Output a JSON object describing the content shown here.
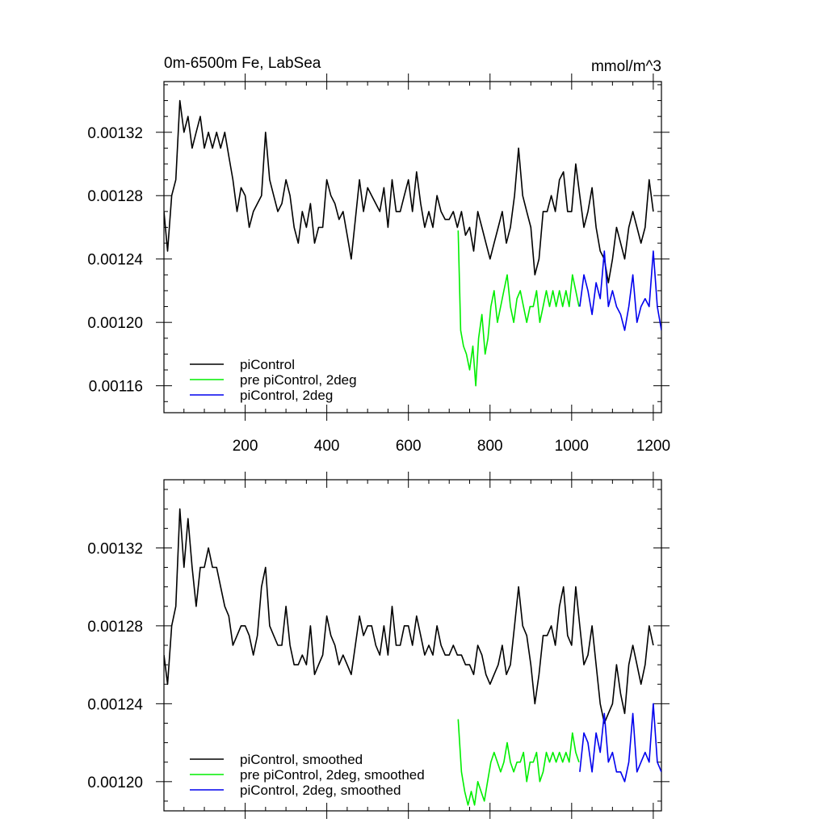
{
  "figure": {
    "title_left": "0m-6500m Fe, LabSea",
    "title_right": "mmol/m^3"
  },
  "chart_data": [
    {
      "type": "line",
      "title": "0m-6500m Fe, LabSea",
      "units": "mmol/m^3",
      "xlim": [
        1,
        1220
      ],
      "ylim": [
        0.001143,
        0.001352
      ],
      "xticks": [
        200,
        400,
        600,
        800,
        1000,
        1200
      ],
      "xtick_labels": [
        "200",
        "400",
        "600",
        "800",
        "1000",
        "1200"
      ],
      "show_xtick_labels": true,
      "yticks": [
        0.00116,
        0.0012,
        0.00124,
        0.00128,
        0.00132
      ],
      "ytick_labels": [
        "0.00116",
        "0.00120",
        "0.00124",
        "0.00128",
        "0.00132"
      ],
      "legend_position": "bottom-left",
      "series": [
        {
          "name": "piControl",
          "color": "#000000",
          "x": [
            1,
            10,
            20,
            30,
            40,
            50,
            60,
            70,
            80,
            90,
            100,
            110,
            120,
            130,
            140,
            150,
            160,
            170,
            180,
            190,
            200,
            210,
            220,
            230,
            240,
            250,
            260,
            270,
            280,
            290,
            300,
            310,
            320,
            330,
            340,
            350,
            360,
            370,
            380,
            390,
            400,
            410,
            420,
            430,
            440,
            450,
            460,
            470,
            480,
            490,
            500,
            510,
            520,
            530,
            540,
            550,
            560,
            570,
            580,
            590,
            600,
            610,
            620,
            630,
            640,
            650,
            660,
            670,
            680,
            690,
            700,
            710,
            720,
            730,
            740,
            750,
            760,
            770,
            780,
            790,
            800,
            810,
            820,
            830,
            840,
            850,
            860,
            870,
            880,
            890,
            900,
            910,
            920,
            930,
            940,
            950,
            960,
            970,
            980,
            990,
            1000,
            1010,
            1020,
            1030,
            1040,
            1050,
            1060,
            1070,
            1080,
            1090,
            1100,
            1110,
            1120,
            1130,
            1140,
            1150,
            1160,
            1170,
            1180,
            1190,
            1200
          ],
          "y": [
            0.00127,
            0.001245,
            0.00128,
            0.00129,
            0.00134,
            0.00132,
            0.00133,
            0.00131,
            0.00132,
            0.00133,
            0.00131,
            0.00132,
            0.00131,
            0.00132,
            0.00131,
            0.00132,
            0.001305,
            0.00129,
            0.00127,
            0.001285,
            0.00128,
            0.00126,
            0.00127,
            0.001275,
            0.00128,
            0.00132,
            0.00129,
            0.00128,
            0.00127,
            0.001275,
            0.00129,
            0.00128,
            0.00126,
            0.00125,
            0.00127,
            0.00126,
            0.001275,
            0.00125,
            0.00126,
            0.00126,
            0.00129,
            0.00128,
            0.001275,
            0.001265,
            0.00127,
            0.001255,
            0.00124,
            0.001265,
            0.00129,
            0.00127,
            0.001285,
            0.00128,
            0.001275,
            0.00127,
            0.001285,
            0.00126,
            0.00129,
            0.00127,
            0.00127,
            0.00128,
            0.00129,
            0.00127,
            0.001295,
            0.001275,
            0.00126,
            0.00127,
            0.00126,
            0.00128,
            0.00127,
            0.001265,
            0.001265,
            0.00127,
            0.00126,
            0.00127,
            0.001255,
            0.00126,
            0.001245,
            0.00127,
            0.00126,
            0.00125,
            0.00124,
            0.00125,
            0.00126,
            0.00127,
            0.00125,
            0.00126,
            0.00128,
            0.00131,
            0.00128,
            0.00127,
            0.00126,
            0.00123,
            0.00124,
            0.00127,
            0.00127,
            0.00128,
            0.00127,
            0.00129,
            0.001295,
            0.00127,
            0.00127,
            0.0013,
            0.00128,
            0.00126,
            0.00127,
            0.001285,
            0.00126,
            0.001245,
            0.00124,
            0.001225,
            0.00124,
            0.00126,
            0.00125,
            0.00124,
            0.00126,
            0.00127,
            0.00126,
            0.00125,
            0.00126,
            0.00129,
            0.00127
          ]
        },
        {
          "name": "pre piControl, 2deg",
          "color": "#00ee00",
          "x": [
            722,
            728,
            735,
            742,
            750,
            758,
            765,
            772,
            780,
            788,
            795,
            802,
            810,
            818,
            826,
            834,
            842,
            850,
            858,
            866,
            874,
            882,
            890,
            898,
            906,
            914,
            922,
            930,
            938,
            946,
            954,
            962,
            970,
            978,
            986,
            994,
            1002,
            1010,
            1018
          ],
          "y": [
            0.001258,
            0.001195,
            0.001185,
            0.00118,
            0.00117,
            0.001185,
            0.00116,
            0.00119,
            0.001205,
            0.00118,
            0.00119,
            0.00121,
            0.00122,
            0.0012,
            0.00121,
            0.00122,
            0.00123,
            0.00121,
            0.0012,
            0.001215,
            0.00122,
            0.00121,
            0.0012,
            0.00121,
            0.00121,
            0.00122,
            0.0012,
            0.00121,
            0.00122,
            0.00121,
            0.00122,
            0.00121,
            0.00122,
            0.00121,
            0.00122,
            0.00121,
            0.00123,
            0.00122,
            0.00121
          ]
        },
        {
          "name": "piControl, 2deg",
          "color": "#0000ee",
          "x": [
            1020,
            1030,
            1040,
            1050,
            1060,
            1070,
            1080,
            1090,
            1100,
            1110,
            1120,
            1130,
            1140,
            1150,
            1160,
            1170,
            1180,
            1190,
            1200,
            1210,
            1220
          ],
          "y": [
            0.00121,
            0.00123,
            0.00122,
            0.001205,
            0.001225,
            0.001215,
            0.001245,
            0.00121,
            0.00122,
            0.00121,
            0.001205,
            0.001195,
            0.00121,
            0.00123,
            0.0012,
            0.00121,
            0.001215,
            0.00121,
            0.001245,
            0.00121,
            0.001195
          ]
        }
      ]
    },
    {
      "type": "line",
      "xlim": [
        1,
        1220
      ],
      "ylim": [
        0.001185,
        0.001355
      ],
      "xticks": [
        200,
        400,
        600,
        800,
        1000,
        1200
      ],
      "xtick_labels": [
        "200",
        "400",
        "600",
        "800",
        "1000",
        "1200"
      ],
      "show_xtick_labels": false,
      "yticks": [
        0.0012,
        0.00124,
        0.00128,
        0.00132
      ],
      "ytick_labels": [
        "0.00120",
        "0.00124",
        "0.00128",
        "0.00132"
      ],
      "legend_position": "bottom-left",
      "series": [
        {
          "name": "piControl, smoothed",
          "color": "#000000",
          "x": [
            1,
            10,
            20,
            30,
            40,
            50,
            60,
            70,
            80,
            90,
            100,
            110,
            120,
            130,
            140,
            150,
            160,
            170,
            180,
            190,
            200,
            210,
            220,
            230,
            240,
            250,
            260,
            270,
            280,
            290,
            300,
            310,
            320,
            330,
            340,
            350,
            360,
            370,
            380,
            390,
            400,
            410,
            420,
            430,
            440,
            450,
            460,
            470,
            480,
            490,
            500,
            510,
            520,
            530,
            540,
            550,
            560,
            570,
            580,
            590,
            600,
            610,
            620,
            630,
            640,
            650,
            660,
            670,
            680,
            690,
            700,
            710,
            720,
            730,
            740,
            750,
            760,
            770,
            780,
            790,
            800,
            810,
            820,
            830,
            840,
            850,
            860,
            870,
            880,
            890,
            900,
            910,
            920,
            930,
            940,
            950,
            960,
            970,
            980,
            990,
            1000,
            1010,
            1020,
            1030,
            1040,
            1050,
            1060,
            1070,
            1080,
            1090,
            1100,
            1110,
            1120,
            1130,
            1140,
            1150,
            1160,
            1170,
            1180,
            1190,
            1200
          ],
          "y": [
            0.001265,
            0.00125,
            0.00128,
            0.00129,
            0.00134,
            0.00131,
            0.001335,
            0.00131,
            0.00129,
            0.00131,
            0.00131,
            0.00132,
            0.00131,
            0.00131,
            0.0013,
            0.00129,
            0.001285,
            0.00127,
            0.001275,
            0.00128,
            0.00128,
            0.001275,
            0.001265,
            0.001275,
            0.0013,
            0.00131,
            0.00128,
            0.001275,
            0.00127,
            0.00127,
            0.00129,
            0.00127,
            0.00126,
            0.00126,
            0.001265,
            0.00126,
            0.00128,
            0.001255,
            0.00126,
            0.001265,
            0.001285,
            0.001275,
            0.00127,
            0.00126,
            0.001265,
            0.00126,
            0.001255,
            0.00127,
            0.001285,
            0.001275,
            0.00128,
            0.00128,
            0.00127,
            0.001265,
            0.00128,
            0.001265,
            0.00129,
            0.00127,
            0.00127,
            0.00128,
            0.00128,
            0.00127,
            0.001285,
            0.001275,
            0.001265,
            0.00127,
            0.001265,
            0.00128,
            0.00127,
            0.001265,
            0.001265,
            0.00127,
            0.001265,
            0.001265,
            0.00126,
            0.00126,
            0.001255,
            0.00127,
            0.001265,
            0.001255,
            0.00125,
            0.001255,
            0.00126,
            0.00127,
            0.001255,
            0.00126,
            0.00128,
            0.0013,
            0.00128,
            0.001275,
            0.00126,
            0.00124,
            0.001255,
            0.001275,
            0.001275,
            0.00128,
            0.00127,
            0.00129,
            0.0013,
            0.001275,
            0.00127,
            0.0013,
            0.00128,
            0.00126,
            0.001265,
            0.00128,
            0.00126,
            0.00124,
            0.00123,
            0.001235,
            0.00124,
            0.00126,
            0.001245,
            0.001235,
            0.00126,
            0.00127,
            0.00126,
            0.00125,
            0.00126,
            0.00128,
            0.00127
          ]
        },
        {
          "name": "pre piControl, 2deg, smoothed",
          "color": "#00ee00",
          "x": [
            722,
            730,
            738,
            746,
            754,
            762,
            770,
            778,
            786,
            794,
            802,
            810,
            818,
            826,
            834,
            842,
            850,
            858,
            866,
            874,
            882,
            890,
            898,
            906,
            914,
            922,
            930,
            938,
            946,
            954,
            962,
            970,
            978,
            986,
            994,
            1002,
            1010,
            1018
          ],
          "y": [
            0.001232,
            0.001205,
            0.001195,
            0.001188,
            0.001195,
            0.001188,
            0.0012,
            0.001195,
            0.00119,
            0.0012,
            0.00121,
            0.001215,
            0.00121,
            0.001205,
            0.00121,
            0.00122,
            0.00121,
            0.001205,
            0.00121,
            0.00121,
            0.001215,
            0.0012,
            0.00121,
            0.00121,
            0.001215,
            0.0012,
            0.001205,
            0.001215,
            0.00121,
            0.001215,
            0.00121,
            0.001215,
            0.00121,
            0.001215,
            0.00121,
            0.001225,
            0.001215,
            0.00121
          ]
        },
        {
          "name": "piControl, 2deg, smoothed",
          "color": "#0000ee",
          "x": [
            1020,
            1030,
            1040,
            1050,
            1060,
            1070,
            1080,
            1090,
            1100,
            1110,
            1120,
            1130,
            1140,
            1150,
            1160,
            1170,
            1180,
            1190,
            1200,
            1210,
            1220
          ],
          "y": [
            0.001205,
            0.001225,
            0.00122,
            0.001205,
            0.001225,
            0.001215,
            0.001235,
            0.00121,
            0.001215,
            0.001205,
            0.001205,
            0.0012,
            0.00121,
            0.001235,
            0.001205,
            0.00121,
            0.001215,
            0.00121,
            0.00124,
            0.00121,
            0.001205
          ]
        }
      ]
    }
  ]
}
